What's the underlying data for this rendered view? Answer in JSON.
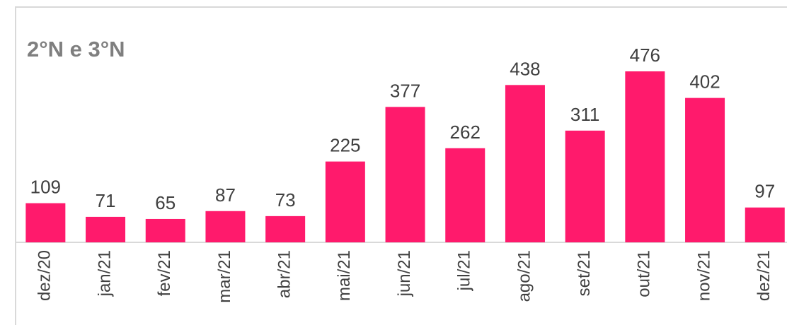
{
  "chart_data": {
    "type": "bar",
    "title": "2°N e 3°N",
    "categories": [
      "dez/20",
      "jan/21",
      "fev/21",
      "mar/21",
      "abr/21",
      "mai/21",
      "jun/21",
      "jul/21",
      "ago/21",
      "set/21",
      "out/21",
      "nov/21",
      "dez/21"
    ],
    "values": [
      109,
      71,
      65,
      87,
      73,
      225,
      377,
      262,
      438,
      311,
      476,
      402,
      97
    ],
    "color": "#ff1a6c"
  }
}
